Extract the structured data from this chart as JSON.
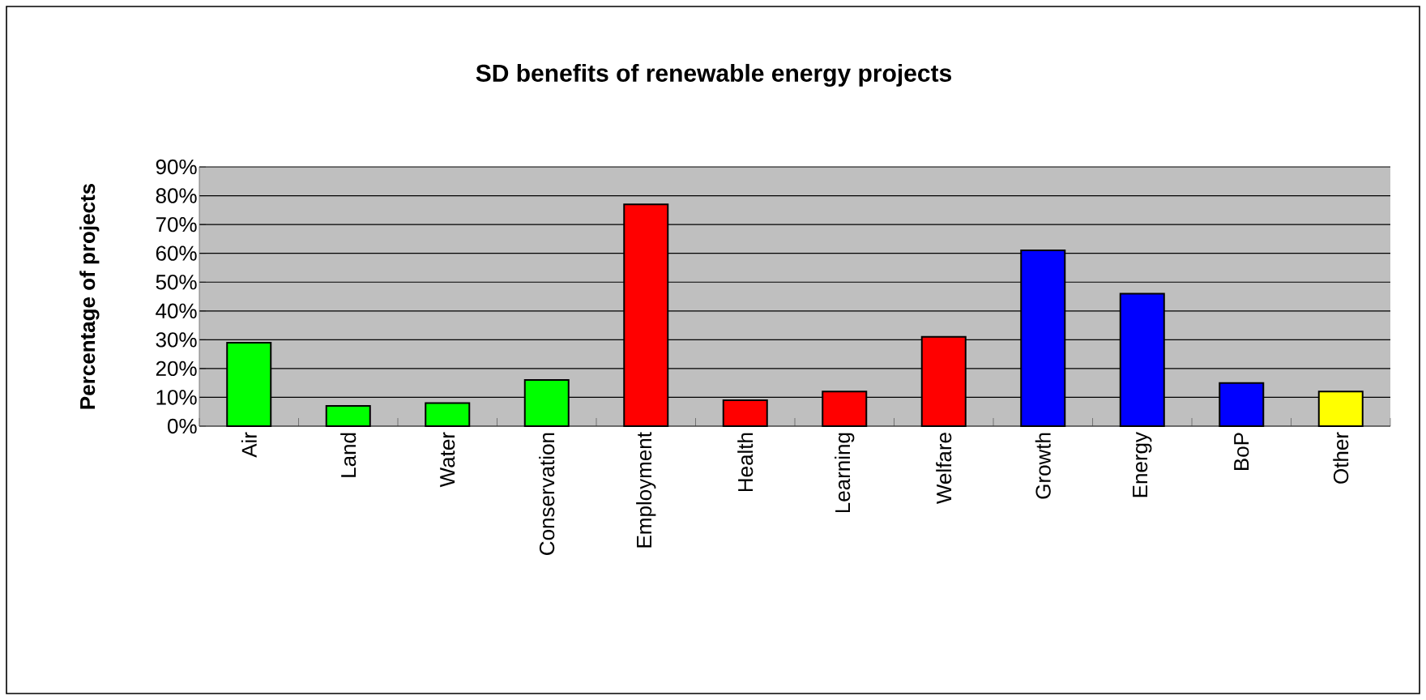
{
  "chart_data": {
    "type": "bar",
    "title": "SD benefits of renewable energy projects",
    "ylabel": "Percentage of projects",
    "categories": [
      "Air",
      "Land",
      "Water",
      "Conservation",
      "Employment",
      "Health",
      "Learning",
      "Welfare",
      "Growth",
      "Energy",
      "BoP",
      "Other"
    ],
    "values": [
      29,
      7,
      8,
      16,
      77,
      9,
      12,
      31,
      61,
      46,
      15,
      12
    ],
    "colors": [
      "#00ff00",
      "#00ff00",
      "#00ff00",
      "#00ff00",
      "#ff0000",
      "#ff0000",
      "#ff0000",
      "#ff0000",
      "#0000ff",
      "#0000ff",
      "#0000ff",
      "#ffff00"
    ],
    "ylim": [
      0,
      90
    ],
    "yticks": [
      {
        "value": 0,
        "label": "0%"
      },
      {
        "value": 10,
        "label": "10%"
      },
      {
        "value": 20,
        "label": "20%"
      },
      {
        "value": 30,
        "label": "30%"
      },
      {
        "value": 40,
        "label": "40%"
      },
      {
        "value": 50,
        "label": "50%"
      },
      {
        "value": 60,
        "label": "60%"
      },
      {
        "value": 70,
        "label": "70%"
      },
      {
        "value": 80,
        "label": "80%"
      },
      {
        "value": 90,
        "label": "90%"
      }
    ],
    "grid": "y"
  }
}
